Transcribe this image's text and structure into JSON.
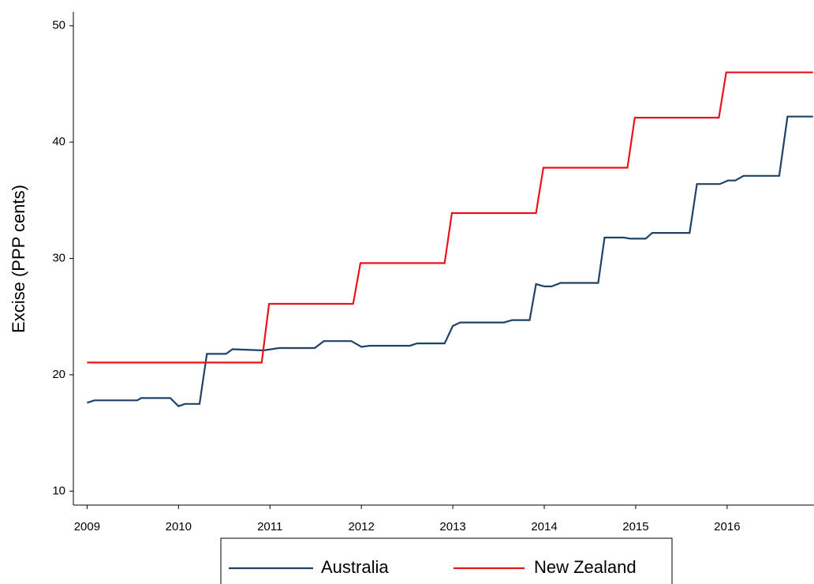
{
  "chart_data": {
    "type": "line",
    "y_label": "Excise (PPP cents)",
    "xlim": [
      2008.85,
      2016.95
    ],
    "xticks": [
      2009,
      2010,
      2011,
      2012,
      2013,
      2014,
      2015,
      2016
    ],
    "ylim": [
      8.8,
      51.2
    ],
    "yticks": [
      10,
      20,
      30,
      40,
      50
    ],
    "legend": "bottom",
    "series": [
      {
        "name": "Australia",
        "color": "#1f4266",
        "x": [
          2009.0,
          2009.08,
          2009.55,
          2009.59,
          2009.91,
          2010.0,
          2010.07,
          2010.23,
          2010.31,
          2010.52,
          2010.59,
          2010.93,
          2011.1,
          2011.49,
          2011.59,
          2011.89,
          2012.0,
          2012.09,
          2012.53,
          2012.61,
          2012.91,
          2013.0,
          2013.08,
          2013.56,
          2013.65,
          2013.84,
          2013.91,
          2014.0,
          2014.08,
          2014.18,
          2014.59,
          2014.66,
          2014.87,
          2014.94,
          2015.11,
          2015.18,
          2015.59,
          2015.67,
          2015.92,
          2016.01,
          2016.09,
          2016.18,
          2016.57,
          2016.66,
          2016.94
        ],
        "values": [
          17.6,
          17.8,
          17.8,
          18.0,
          18.0,
          17.3,
          17.5,
          17.5,
          21.8,
          21.8,
          22.2,
          22.1,
          22.3,
          22.3,
          22.9,
          22.9,
          22.4,
          22.5,
          22.5,
          22.7,
          22.7,
          24.2,
          24.5,
          24.5,
          24.7,
          24.7,
          27.8,
          27.6,
          27.6,
          27.9,
          27.9,
          31.8,
          31.8,
          31.7,
          31.7,
          32.2,
          32.2,
          36.4,
          36.4,
          36.7,
          36.7,
          37.1,
          37.1,
          42.2,
          42.2
        ]
      },
      {
        "name": "New Zealand",
        "color": "#e8141c",
        "x": [
          2009.0,
          2010.91,
          2010.99,
          2011.91,
          2011.99,
          2012.91,
          2012.99,
          2013.91,
          2013.99,
          2014.91,
          2014.99,
          2015.91,
          2015.99,
          2016.94
        ],
        "values": [
          21.05,
          21.05,
          26.1,
          26.1,
          29.6,
          29.6,
          33.9,
          33.9,
          37.8,
          37.8,
          42.1,
          42.1,
          46.0,
          46.0
        ]
      }
    ]
  }
}
